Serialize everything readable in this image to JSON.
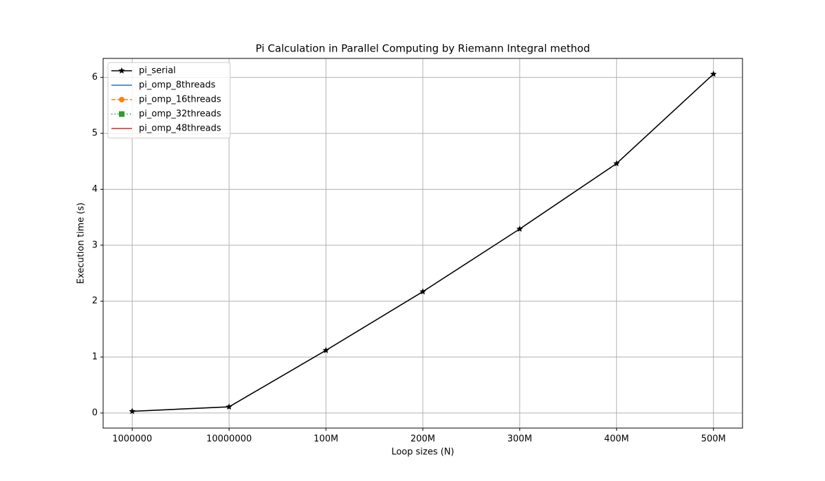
{
  "chart_data": {
    "type": "line",
    "title": "Pi Calculation in Parallel Computing by Riemann Integral method",
    "xlabel": "Loop sizes (N)",
    "ylabel": "Execution time (s)",
    "categories": [
      "1000000",
      "10000000",
      "100M",
      "200M",
      "300M",
      "400M",
      "500M"
    ],
    "series": [
      {
        "name": "pi_serial",
        "color": "#000000",
        "linestyle": "solid",
        "marker": "star",
        "values": [
          0.03,
          0.11,
          1.12,
          2.17,
          3.29,
          4.46,
          6.06
        ]
      },
      {
        "name": "pi_omp_8threads",
        "color": "#1f77b4",
        "linestyle": "solid",
        "marker": "none",
        "values": [
          null,
          null,
          null,
          null,
          null,
          null,
          null
        ]
      },
      {
        "name": "pi_omp_16threads",
        "color": "#ff7f0e",
        "linestyle": "dashed",
        "marker": "circle",
        "values": [
          null,
          null,
          null,
          null,
          null,
          null,
          null
        ]
      },
      {
        "name": "pi_omp_32threads",
        "color": "#2ca02c",
        "linestyle": "dotted",
        "marker": "square",
        "values": [
          null,
          null,
          null,
          null,
          null,
          null,
          null
        ]
      },
      {
        "name": "pi_omp_48threads",
        "color": "#d62728",
        "linestyle": "solid",
        "marker": "none",
        "values": [
          null,
          null,
          null,
          null,
          null,
          null,
          null
        ]
      }
    ],
    "ylim": [
      -0.27,
      6.34
    ],
    "yticks": [
      0,
      1,
      2,
      3,
      4,
      5,
      6
    ],
    "grid": true,
    "legend": "upper-left"
  }
}
